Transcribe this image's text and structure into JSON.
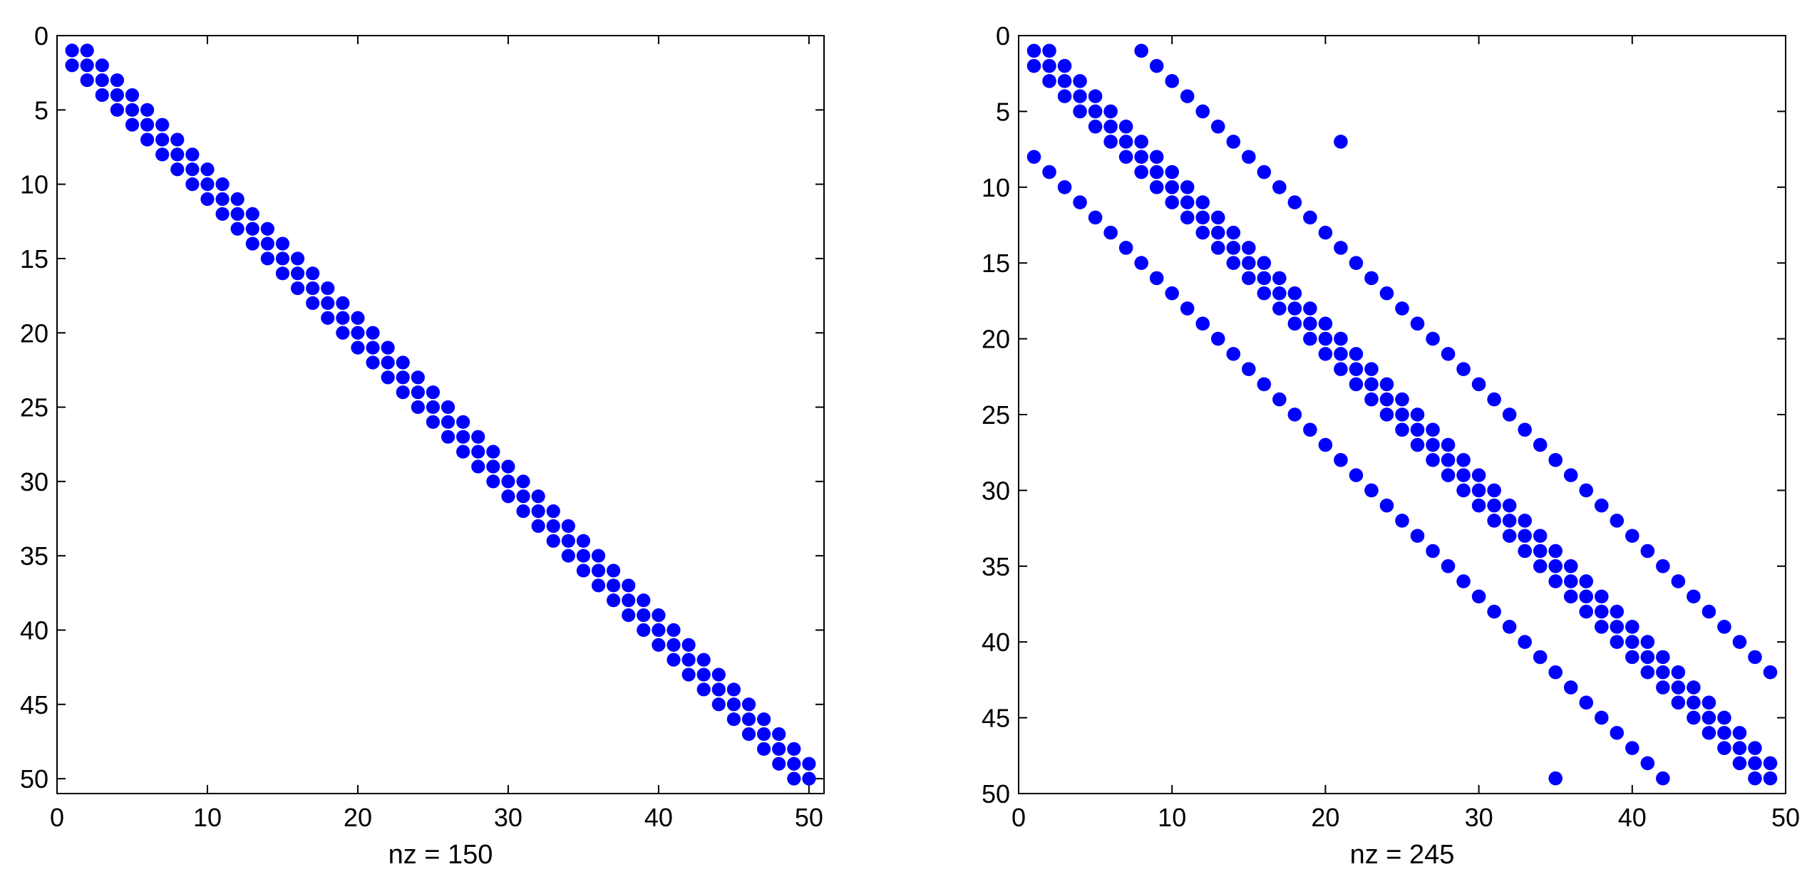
{
  "chart_data": [
    {
      "type": "scatter",
      "title": "",
      "xlabel": "nz = 150",
      "ylabel": "",
      "xlim": [
        0,
        51
      ],
      "ylim": [
        0,
        51
      ],
      "y_reversed": true,
      "xticks": [
        0,
        10,
        20,
        30,
        40,
        50
      ],
      "yticks": [
        0,
        5,
        10,
        15,
        20,
        25,
        30,
        35,
        40,
        45,
        50
      ],
      "grid": false,
      "marker_color": "#0000ff",
      "pattern": "tridiagonal",
      "n": 50,
      "nz": 150
    },
    {
      "type": "scatter",
      "title": "",
      "xlabel": "nz = 245",
      "ylabel": "",
      "xlim": [
        0,
        50
      ],
      "ylim": [
        0,
        50
      ],
      "y_reversed": true,
      "xticks": [
        0,
        10,
        20,
        30,
        40,
        50
      ],
      "yticks": [
        0,
        5,
        10,
        15,
        20,
        25,
        30,
        35,
        40,
        45,
        50
      ],
      "grid": false,
      "marker_color": "#0000ff",
      "pattern": "block-banded",
      "n": 49,
      "nz": 245,
      "band_offsets": [
        -7,
        -1,
        0,
        1,
        7
      ],
      "extra_points": [
        [
          21,
          7
        ],
        [
          35,
          49
        ]
      ]
    }
  ]
}
